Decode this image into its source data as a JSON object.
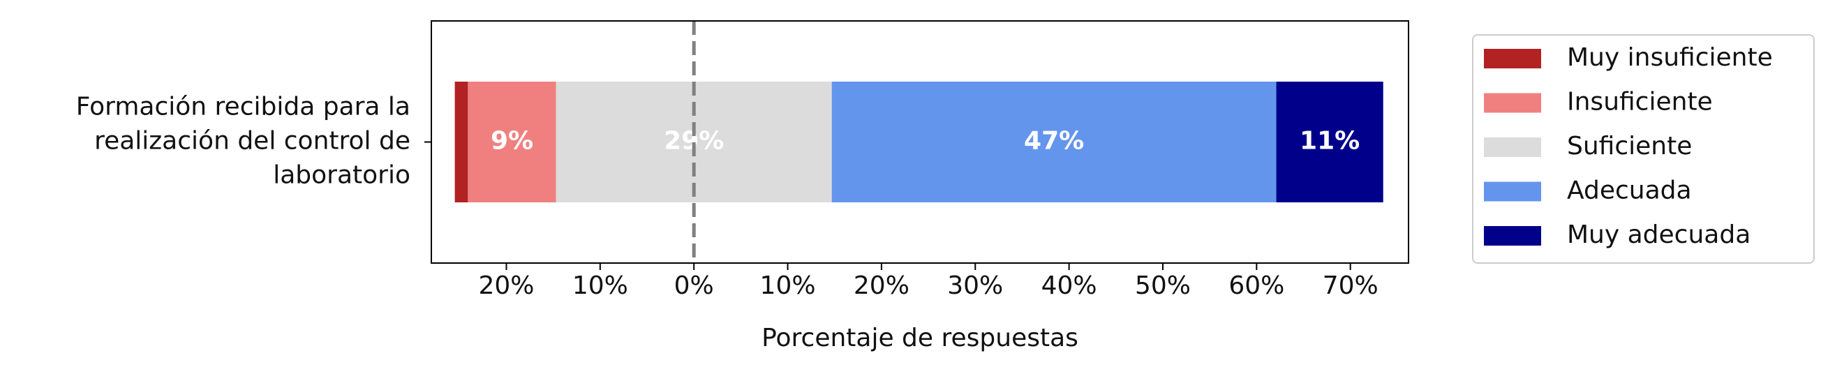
{
  "chart_data": {
    "type": "diverging-bar",
    "categories": [
      "Formación recibida para la realización del control de laboratorio"
    ],
    "series": [
      {
        "name": "Muy insuficiente",
        "color": "#b22222",
        "values": [
          1.4
        ],
        "value_labels": [
          null
        ]
      },
      {
        "name": "Insuficiente",
        "color": "#f08080",
        "values": [
          9.4
        ],
        "value_labels": [
          "9%"
        ]
      },
      {
        "name": "Suficiente",
        "color": "#dcdcdc",
        "values": [
          29.4
        ],
        "value_labels": [
          "29%"
        ]
      },
      {
        "name": "Adecuada",
        "color": "#6495ed",
        "values": [
          47.4
        ],
        "value_labels": [
          "47%"
        ]
      },
      {
        "name": "Muy adecuada",
        "color": "#00008b",
        "values": [
          11.4
        ],
        "value_labels": [
          "11%"
        ]
      }
    ],
    "neutral_series": 2,
    "xlabel": "Porcentaje de respuestas",
    "xlim": [
      -28,
      76.2
    ],
    "xticks": [
      {
        "value": -20,
        "label": "20%"
      },
      {
        "value": -10,
        "label": "10%"
      },
      {
        "value": 0,
        "label": "0%"
      },
      {
        "value": 10,
        "label": "10%"
      },
      {
        "value": 20,
        "label": "20%"
      },
      {
        "value": 30,
        "label": "30%"
      },
      {
        "value": 40,
        "label": "40%"
      },
      {
        "value": 50,
        "label": "50%"
      },
      {
        "value": 60,
        "label": "60%"
      },
      {
        "value": 70,
        "label": "70%"
      }
    ],
    "legend": "outside-right"
  }
}
